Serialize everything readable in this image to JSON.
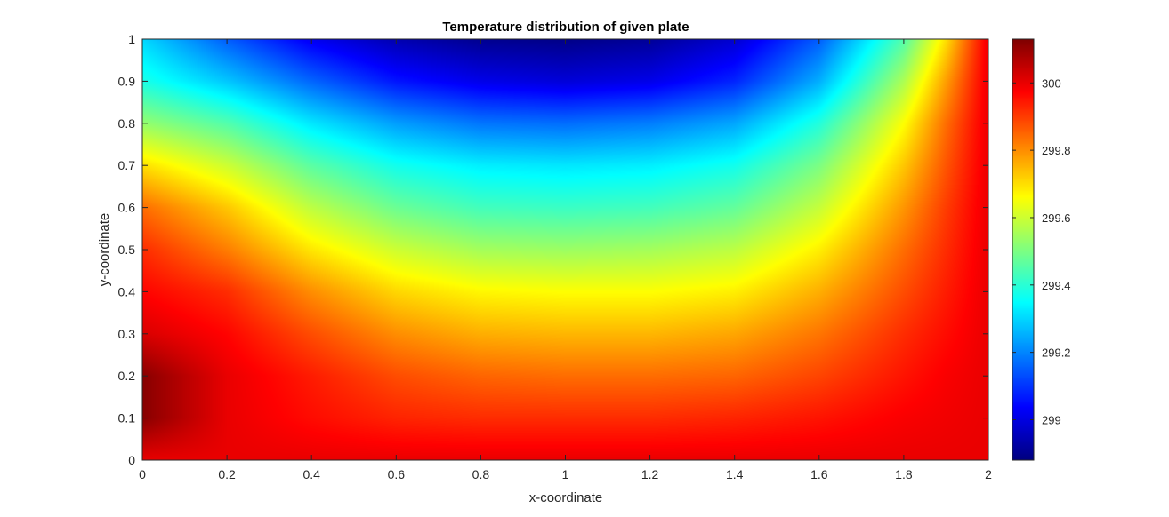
{
  "chart_data": {
    "type": "heatmap",
    "title": "Temperature distribution of given plate",
    "xlabel": "x-coordinate",
    "ylabel": "y-coordinate",
    "xlim": [
      0,
      2
    ],
    "ylim": [
      0,
      1
    ],
    "x_ticks": [
      0,
      0.2,
      0.4,
      0.6,
      0.8,
      1,
      1.2,
      1.4,
      1.6,
      1.8,
      2
    ],
    "y_ticks": [
      0,
      0.1,
      0.2,
      0.3,
      0.4,
      0.5,
      0.6,
      0.7,
      0.8,
      0.9,
      1
    ],
    "x_tick_labels": [
      "0",
      "0.2",
      "0.4",
      "0.6",
      "0.8",
      "1",
      "1.2",
      "1.4",
      "1.6",
      "1.8",
      "2"
    ],
    "y_tick_labels": [
      "0",
      "0.1",
      "0.2",
      "0.3",
      "0.4",
      "0.5",
      "0.6",
      "0.7",
      "0.8",
      "0.9",
      "1"
    ],
    "colormap": "jet",
    "colorbar": {
      "limits": [
        298.88,
        300.13
      ],
      "ticks": [
        299,
        299.2,
        299.4,
        299.6,
        299.8,
        300
      ],
      "tick_labels": [
        "299",
        "299.2",
        "299.4",
        "299.6",
        "299.8",
        "300"
      ]
    },
    "field": {
      "x": [
        0,
        0.2,
        0.4,
        0.6,
        0.8,
        1.0,
        1.2,
        1.4,
        1.6,
        1.8,
        1.9,
        2.0
      ],
      "y": [
        0,
        0.1,
        0.2,
        0.3,
        0.4,
        0.5,
        0.6,
        0.7,
        0.8,
        0.9,
        1.0
      ],
      "values": [
        [
          300.0,
          300.0,
          300.0,
          300.0,
          300.0,
          300.0,
          300.0,
          300.0,
          300.0,
          300.0,
          300.0,
          300.0
        ],
        [
          300.12,
          300.0,
          299.96,
          299.93,
          299.92,
          299.92,
          299.92,
          299.93,
          299.95,
          299.98,
          299.99,
          300.0
        ],
        [
          300.12,
          300.0,
          299.94,
          299.88,
          299.85,
          299.84,
          299.84,
          299.85,
          299.89,
          299.95,
          299.98,
          300.0
        ],
        [
          300.02,
          299.97,
          299.88,
          299.8,
          299.76,
          299.75,
          299.75,
          299.77,
          299.83,
          299.92,
          299.96,
          300.0
        ],
        [
          299.97,
          299.92,
          299.8,
          299.71,
          299.67,
          299.66,
          299.66,
          299.68,
          299.76,
          299.88,
          299.94,
          300.0
        ],
        [
          299.92,
          299.82,
          299.69,
          299.6,
          299.55,
          299.54,
          299.55,
          299.58,
          299.68,
          299.84,
          299.92,
          300.0
        ],
        [
          299.84,
          299.73,
          299.58,
          299.48,
          299.43,
          299.42,
          299.43,
          299.47,
          299.59,
          299.79,
          299.9,
          300.0
        ],
        [
          299.7,
          299.6,
          299.46,
          299.37,
          299.33,
          299.32,
          299.33,
          299.37,
          299.5,
          299.73,
          299.87,
          300.0
        ],
        [
          299.53,
          299.45,
          299.32,
          299.23,
          299.18,
          299.17,
          299.19,
          299.24,
          299.39,
          299.66,
          299.84,
          300.0
        ],
        [
          299.38,
          299.28,
          299.16,
          299.06,
          299.01,
          298.99,
          299.01,
          299.08,
          299.25,
          299.56,
          299.78,
          300.0
        ],
        [
          299.3,
          299.15,
          299.02,
          298.94,
          298.9,
          298.89,
          298.91,
          298.98,
          299.15,
          299.45,
          299.7,
          300.0
        ]
      ]
    }
  }
}
